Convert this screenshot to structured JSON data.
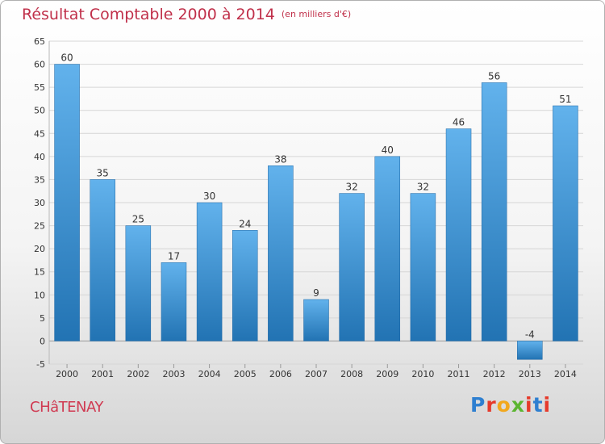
{
  "title": "Résultat Comptable 2000 à 2014",
  "title_unit": "(en milliers d'€)",
  "commune": "CHâTENAY",
  "logo_text": "Proxiti",
  "logo_colors": [
    "#2e7fd0",
    "#e63a2b",
    "#f2a81d",
    "#5bb531",
    "#e63a2b",
    "#2e7fd0",
    "#e63a2b"
  ],
  "colors": {
    "title": "#c0304a",
    "bar_light": "#62b2ec",
    "bar_dark": "#2273b3",
    "grid": "#d6d6d6"
  },
  "chart_data": {
    "type": "bar",
    "title": "Résultat Comptable 2000 à 2014",
    "subtitle": "(en milliers d'€)",
    "categories": [
      "2000",
      "2001",
      "2002",
      "2003",
      "2004",
      "2005",
      "2006",
      "2007",
      "2008",
      "2009",
      "2010",
      "2011",
      "2012",
      "2013",
      "2014"
    ],
    "values": [
      60,
      35,
      25,
      17,
      30,
      24,
      38,
      9,
      32,
      40,
      32,
      46,
      56,
      -4,
      51
    ],
    "data_labels": [
      "60",
      "35",
      "25",
      "17",
      "30",
      "24",
      "38",
      "9",
      "32",
      "40",
      "32",
      "46",
      "56",
      "-4",
      "51"
    ],
    "ylim": [
      -5,
      65
    ],
    "yticks": [
      -5,
      0,
      5,
      10,
      15,
      20,
      25,
      30,
      35,
      40,
      45,
      50,
      55,
      60,
      65
    ],
    "xlabel": "",
    "ylabel": "",
    "grid": true,
    "legend": "none"
  }
}
